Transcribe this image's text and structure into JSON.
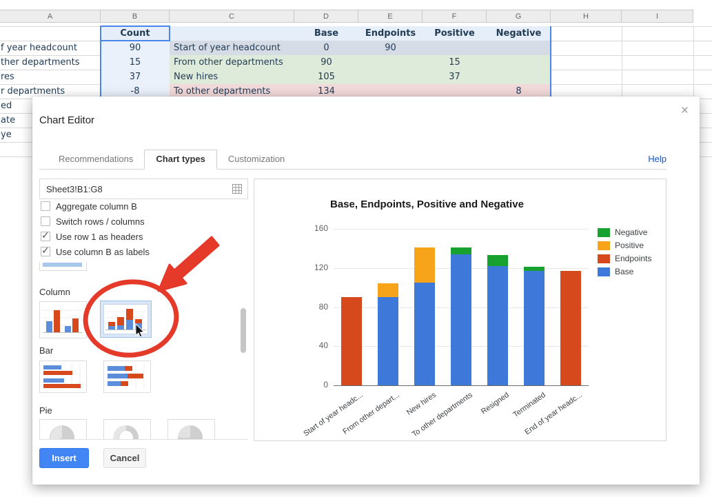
{
  "sheet": {
    "col_headers": [
      "A",
      "B",
      "C",
      "D",
      "E",
      "F",
      "G",
      "H",
      "I"
    ],
    "header_row": {
      "b": "Count",
      "c": "",
      "d": "Base",
      "e": "Endpoints",
      "f": "Positive",
      "g": "Negative"
    },
    "data_rows": [
      {
        "a": "f year headcount",
        "b": "90",
        "c": "Start of year headcount",
        "d": "0",
        "e": "90",
        "f": "",
        "g": "",
        "tint": "slate"
      },
      {
        "a": "ther departments",
        "b": "15",
        "c": "From other departments",
        "d": "90",
        "e": "",
        "f": "15",
        "g": "",
        "tint": "green"
      },
      {
        "a": "res",
        "b": "37",
        "c": "New hires",
        "d": "105",
        "e": "",
        "f": "37",
        "g": "",
        "tint": "green"
      },
      {
        "a": "r departments",
        "b": "-8",
        "c": "To other departments",
        "d": "134",
        "e": "",
        "f": "",
        "g": "8",
        "tint": "pink"
      }
    ],
    "edge_rows": [
      "ed",
      "ate",
      "ye"
    ],
    "colors": {
      "header_fill": "#E6EEF9",
      "b_col_fill": "#EAF1FB",
      "slate": "#D6DCE6",
      "green": "#DFEBDA",
      "pink": "#F2DADA",
      "text": "#223C55",
      "range_border": "#4A86E8"
    }
  },
  "dialog": {
    "title": "Chart Editor",
    "close_icon": "×",
    "tabs": [
      {
        "label": "Recommendations",
        "active": false
      },
      {
        "label": "Chart types",
        "active": true
      },
      {
        "label": "Customization",
        "active": false
      }
    ],
    "help_label": "Help",
    "range_value": "Sheet3!B1:G8",
    "range_icon": "select-range-grid-icon",
    "options": [
      {
        "label": "Aggregate column B",
        "checked": false
      },
      {
        "label": "Switch rows / columns",
        "checked": false
      },
      {
        "label": "Use row 1 as headers",
        "checked": true
      },
      {
        "label": "Use column B as labels",
        "checked": true
      }
    ],
    "sections": {
      "column": "Column",
      "bar": "Bar",
      "pie": "Pie"
    },
    "buttons": {
      "insert": "Insert",
      "cancel": "Cancel"
    },
    "annotation_color": "#E5392A"
  },
  "chart_data": {
    "type": "bar",
    "stacked": true,
    "title": "Base, Endpoints, Positive and Negative",
    "categories": [
      "Start of year headc...",
      "From other depart...",
      "New hires",
      "To other departments",
      "Resigned",
      "Terminated",
      "End of year headc..."
    ],
    "series": [
      {
        "name": "Base",
        "color": "#3E79DA",
        "values": [
          0,
          90,
          105,
          134,
          122,
          117,
          0
        ]
      },
      {
        "name": "Endpoints",
        "color": "#D6491C",
        "values": [
          90,
          0,
          0,
          0,
          0,
          0,
          117
        ]
      },
      {
        "name": "Positive",
        "color": "#F8A41B",
        "values": [
          0,
          15,
          37,
          0,
          0,
          0,
          0
        ]
      },
      {
        "name": "Negative",
        "color": "#17A12E",
        "values": [
          0,
          0,
          0,
          8,
          12,
          5,
          0
        ]
      }
    ],
    "ylim": [
      0,
      160
    ],
    "yticks": [
      0,
      40,
      80,
      120,
      160
    ],
    "xlabel": "",
    "ylabel": "",
    "grid": true,
    "legend_position": "right",
    "legend_order": [
      "Negative",
      "Positive",
      "Endpoints",
      "Base"
    ]
  }
}
